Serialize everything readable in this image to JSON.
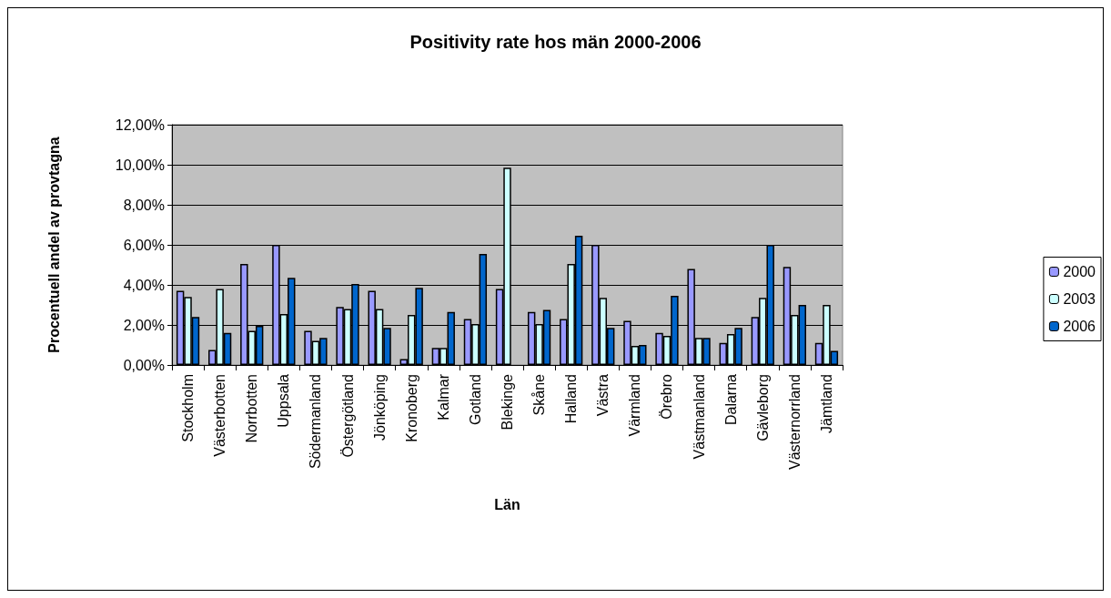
{
  "chart_data": {
    "type": "bar",
    "title": "Positivity rate hos män 2000-2006",
    "xlabel": "Län",
    "ylabel": "Procentuell andel av provtagna",
    "categories": [
      "Stockholm",
      "Västerbotten",
      "Norrbotten",
      "Uppsala",
      "Södermanland",
      "Östergötland",
      "Jönköping",
      "Kronoberg",
      "Kalmar",
      "Gotland",
      "Blekinge",
      "Skåne",
      "Halland",
      "Västra",
      "Värmland",
      "Örebro",
      "Västmanland",
      "Dalarna",
      "Gävleborg",
      "Västernorrland",
      "Jämtland"
    ],
    "series": [
      {
        "name": "2000",
        "color": "#9999ff",
        "values": [
          3.7,
          0.75,
          5.05,
          6.0,
          1.7,
          2.9,
          3.7,
          0.3,
          0.85,
          2.3,
          3.8,
          2.65,
          2.3,
          6.0,
          2.2,
          1.6,
          4.8,
          1.1,
          2.4,
          4.9,
          1.1
        ]
      },
      {
        "name": "2003",
        "color": "#ccffff",
        "values": [
          3.4,
          3.8,
          1.7,
          2.55,
          1.2,
          2.8,
          2.8,
          2.5,
          0.85,
          2.05,
          9.85,
          2.05,
          5.05,
          3.35,
          0.95,
          1.45,
          1.35,
          1.55,
          3.35,
          2.5,
          3.0
        ]
      },
      {
        "name": "2006",
        "color": "#0066cc",
        "values": [
          2.4,
          1.6,
          1.95,
          4.35,
          1.35,
          4.05,
          1.85,
          3.85,
          2.65,
          5.55,
          null,
          2.75,
          6.45,
          1.85,
          1.0,
          3.45,
          1.35,
          1.85,
          6.0,
          3.0,
          0.7
        ]
      }
    ],
    "ylim": [
      0,
      12
    ],
    "yticks": [
      {
        "value": 0,
        "label": "0,00%"
      },
      {
        "value": 2,
        "label": "2,00%"
      },
      {
        "value": 4,
        "label": "4,00%"
      },
      {
        "value": 6,
        "label": "6,00%"
      },
      {
        "value": 8,
        "label": "8,00%"
      },
      {
        "value": 10,
        "label": "10,00%"
      },
      {
        "value": 12,
        "label": "12,00%"
      }
    ],
    "grid": "y",
    "legend": "right"
  }
}
